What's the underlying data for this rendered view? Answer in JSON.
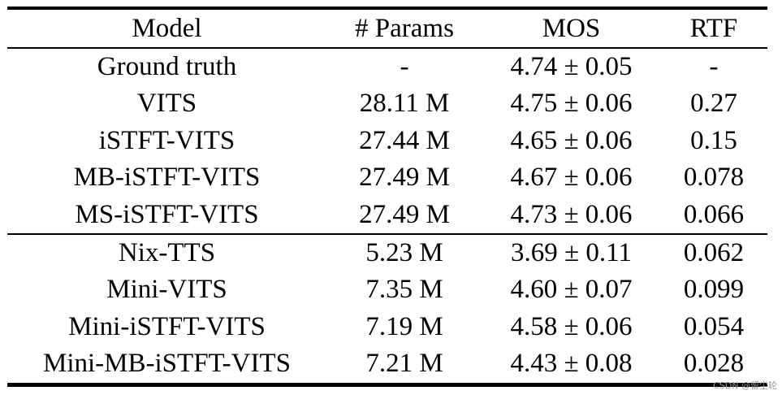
{
  "table": {
    "headers": [
      "Model",
      "# Params",
      "MOS",
      "RTF"
    ],
    "groups": [
      [
        [
          "Ground truth",
          "-",
          "4.74 ± 0.05",
          "-"
        ],
        [
          "VITS",
          "28.11 M",
          "4.75 ± 0.06",
          "0.27"
        ],
        [
          "iSTFT-VITS",
          "27.44 M",
          "4.65 ± 0.06",
          "0.15"
        ],
        [
          "MB-iSTFT-VITS",
          "27.49 M",
          "4.67 ± 0.06",
          "0.078"
        ],
        [
          "MS-iSTFT-VITS",
          "27.49 M",
          "4.73 ± 0.06",
          "0.066"
        ]
      ],
      [
        [
          "Nix-TTS",
          "5.23 M",
          "3.69 ± 0.11",
          "0.062"
        ],
        [
          "Mini-VITS",
          "7.35 M",
          "4.60 ± 0.07",
          "0.099"
        ],
        [
          "Mini-iSTFT-VITS",
          "7.19 M",
          "4.58 ± 0.06",
          "0.054"
        ],
        [
          "Mini-MB-iSTFT-VITS",
          "7.21 M",
          "4.43 ± 0.08",
          "0.028"
        ]
      ]
    ]
  },
  "watermark": "CSDN @留尘轮"
}
